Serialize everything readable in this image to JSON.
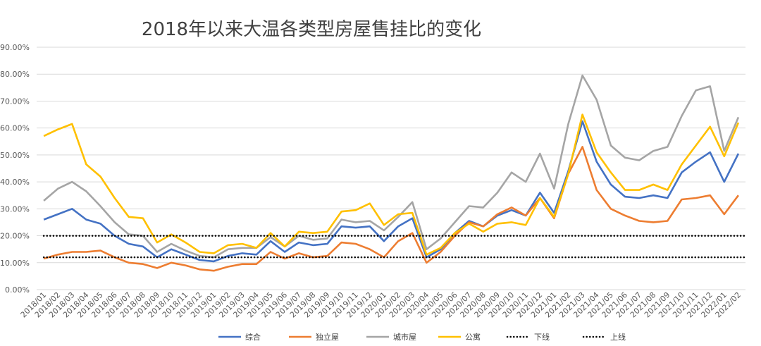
{
  "chart_data": {
    "type": "line",
    "title": "2018年以来大温各类型房屋售挂比的变化",
    "ylim": [
      0,
      90
    ],
    "yticks": [
      "0.00%",
      "10.00%",
      "20.00%",
      "30.00%",
      "40.00%",
      "50.00%",
      "60.00%",
      "70.00%",
      "80.00%",
      "90.00%"
    ],
    "categories": [
      "2018/01",
      "2018/02",
      "2018/03",
      "2018/04",
      "2018/05",
      "2018/06",
      "2018/07",
      "2018/08",
      "2018/09",
      "2018/10",
      "2018/11",
      "2018/12",
      "2019/01",
      "2019/02",
      "2019/03",
      "2019/04",
      "2019/05",
      "2019/06",
      "2019/07",
      "2019/08",
      "2019/09",
      "2019/10",
      "2019/11",
      "2019/12",
      "2020/01",
      "2020/02",
      "2020/03",
      "2020/04",
      "2020/05",
      "2020/06",
      "2020/07",
      "2020/08",
      "2020/09",
      "2020/10",
      "2020/11",
      "2020/12",
      "2021/01",
      "2021/02",
      "2021/03",
      "2021/04",
      "2021/05",
      "2021/06",
      "2021/07",
      "2021/08",
      "2021/09",
      "2021/10",
      "2021/11",
      "2021/12",
      "2022/01",
      "2022/02"
    ],
    "series": [
      {
        "name": "综合",
        "color": "#4472C4",
        "dash": "none",
        "values": [
          26,
          28,
          30,
          26,
          24.5,
          20,
          17,
          16,
          12,
          15,
          13,
          11,
          10.5,
          12.5,
          13.5,
          13,
          18,
          14,
          17.5,
          16.5,
          17,
          23.5,
          23,
          23.5,
          18,
          23.5,
          26.5,
          12,
          15,
          21,
          25.5,
          23.5,
          27.5,
          29.5,
          27.5,
          36,
          28.5,
          44,
          62.5,
          47.5,
          39,
          34.5,
          34,
          35,
          34,
          43.5,
          47.5,
          51,
          40,
          50.5
        ]
      },
      {
        "name": "独立屋",
        "color": "#ED7D31",
        "dash": "none",
        "values": [
          11.5,
          13,
          14,
          14,
          14.5,
          12,
          10,
          9.5,
          8,
          10,
          9,
          7.5,
          7,
          8.5,
          9.5,
          9.5,
          14,
          11.5,
          13.5,
          12,
          12.5,
          17.5,
          17,
          15,
          12,
          18,
          21,
          10,
          14,
          20,
          25,
          23.5,
          28,
          30.5,
          27.5,
          34,
          26.5,
          43,
          53,
          37,
          30,
          27.5,
          25.5,
          25,
          25.5,
          33.5,
          34,
          35,
          28,
          35
        ]
      },
      {
        "name": "城市屋",
        "color": "#A5A5A5",
        "dash": "none",
        "values": [
          33,
          37.5,
          40,
          36.5,
          31,
          25,
          20.5,
          20,
          14,
          17,
          14.5,
          12.5,
          12,
          15,
          15.5,
          15.5,
          19.5,
          16,
          20,
          18.5,
          19,
          26,
          25,
          25.5,
          22,
          27,
          32.5,
          15,
          19,
          25,
          31,
          30.5,
          36,
          43.5,
          40,
          50.5,
          37.5,
          61.5,
          79.5,
          70.5,
          53.5,
          49,
          48,
          51.5,
          53,
          64.5,
          74,
          75.5,
          51.5,
          64
        ]
      },
      {
        "name": "公寓",
        "color": "#FFC000",
        "dash": "none",
        "values": [
          57,
          59.5,
          61.5,
          46.5,
          42,
          34,
          27,
          26.5,
          17.5,
          20.5,
          17.5,
          14,
          13.5,
          16.5,
          17,
          15.5,
          21,
          16,
          21.5,
          21,
          21.5,
          29,
          29.5,
          32,
          24,
          28,
          28.5,
          13,
          15.5,
          21,
          24.5,
          21.5,
          24.5,
          25,
          24,
          34,
          27,
          43,
          65,
          51,
          43.5,
          37,
          37,
          39,
          37,
          46.5,
          53.5,
          60.5,
          49.5,
          62
        ]
      },
      {
        "name": "下线",
        "color": "#000000",
        "dash": "dot",
        "values": [
          20,
          20,
          20,
          20,
          20,
          20,
          20,
          20,
          20,
          20,
          20,
          20,
          20,
          20,
          20,
          20,
          20,
          20,
          20,
          20,
          20,
          20,
          20,
          20,
          20,
          20,
          20,
          20,
          20,
          20,
          20,
          20,
          20,
          20,
          20,
          20,
          20,
          20,
          20,
          20,
          20,
          20,
          20,
          20,
          20,
          20,
          20,
          20,
          20,
          20
        ]
      },
      {
        "name": "上线",
        "color": "#000000",
        "dash": "dot",
        "values": [
          12,
          12,
          12,
          12,
          12,
          12,
          12,
          12,
          12,
          12,
          12,
          12,
          12,
          12,
          12,
          12,
          12,
          12,
          12,
          12,
          12,
          12,
          12,
          12,
          12,
          12,
          12,
          12,
          12,
          12,
          12,
          12,
          12,
          12,
          12,
          12,
          12,
          12,
          12,
          12,
          12,
          12,
          12,
          12,
          12,
          12,
          12,
          12,
          12,
          12
        ]
      }
    ],
    "grid": true,
    "legend_position": "bottom"
  }
}
